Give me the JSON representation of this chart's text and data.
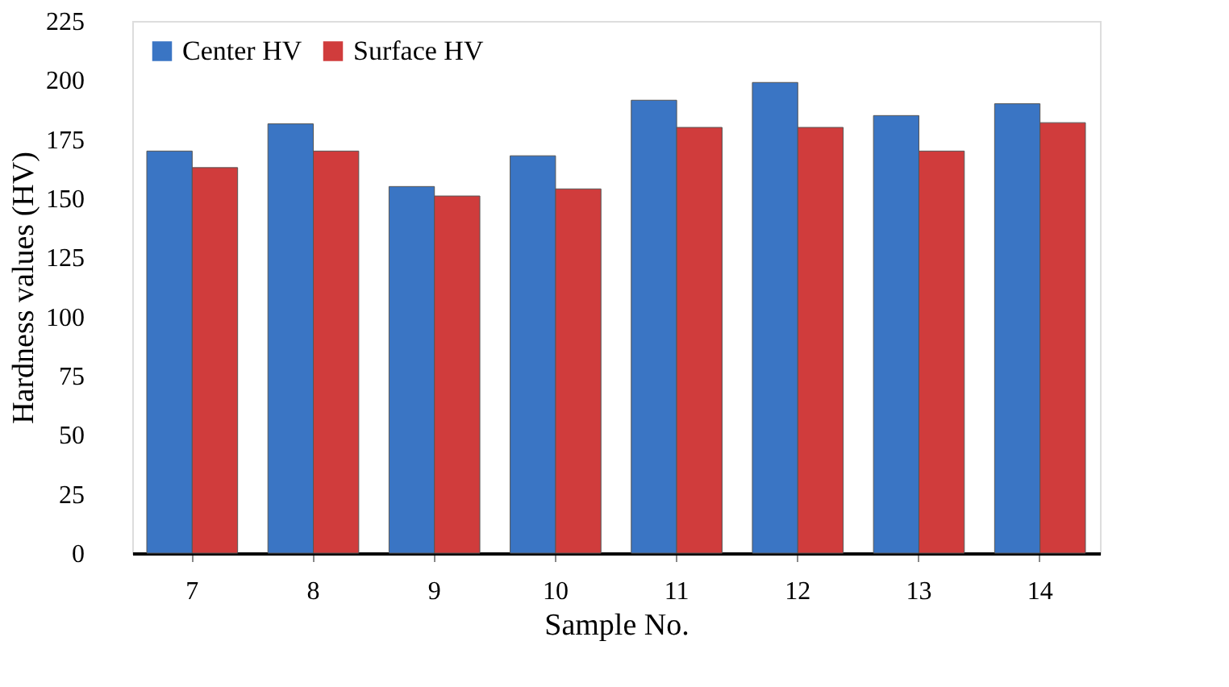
{
  "chart_data": {
    "type": "bar",
    "xlabel": "Sample No.",
    "ylabel": "Hardness values (HV)",
    "categories": [
      "7",
      "8",
      "9",
      "10",
      "11",
      "12",
      "13",
      "14"
    ],
    "series": [
      {
        "name": "Center HV",
        "color": "#3a75c4",
        "values": [
          170,
          181.5,
          155,
          168,
          191.5,
          199,
          185,
          190
        ]
      },
      {
        "name": "Surface HV",
        "color": "#d03c3c",
        "values": [
          163,
          170,
          151,
          154,
          180,
          180,
          170,
          182
        ]
      }
    ],
    "ylim": [
      0,
      225
    ],
    "yticks": [
      0,
      25,
      50,
      75,
      100,
      125,
      150,
      175,
      200,
      225
    ],
    "grid": false,
    "legend": "top left"
  }
}
